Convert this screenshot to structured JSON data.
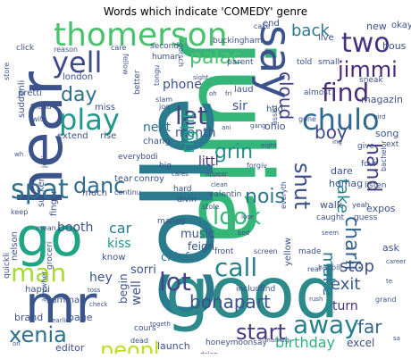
{
  "title": "Words which indicate 'COMEDY' genre",
  "words": [
    {
      "text": "ted",
      "color": "#2a8c8a"
    },
    {
      "text": "julia",
      "color": "#34b679"
    },
    {
      "text": "colle",
      "color": "#2a7b8e"
    },
    {
      "text": "good",
      "color": "#2c8a8b"
    },
    {
      "text": "hear",
      "color": "#3b528b"
    },
    {
      "text": "go",
      "color": "#20a486"
    },
    {
      "text": "mr",
      "color": "#39568c"
    },
    {
      "text": "thomerson",
      "color": "#4ac16d"
    },
    {
      "text": "say",
      "color": "#3b528b"
    },
    {
      "text": "find",
      "color": "#472d7b"
    },
    {
      "text": "chulo",
      "color": "#31688e"
    },
    {
      "text": "play",
      "color": "#1f988b"
    },
    {
      "text": "let",
      "color": "#414487"
    },
    {
      "text": "two",
      "color": "#46327e"
    },
    {
      "text": "jimmi",
      "color": "#482878"
    },
    {
      "text": "yell",
      "color": "#3e4a89"
    },
    {
      "text": "palac",
      "color": "#4ac16d"
    },
    {
      "text": "spat",
      "color": "#2c728e"
    },
    {
      "text": "man",
      "color": "#a5db36"
    },
    {
      "text": "away",
      "color": "#277f8e"
    },
    {
      "text": "look",
      "color": "#3aba76"
    },
    {
      "text": "call",
      "color": "#25838e"
    },
    {
      "text": "lot",
      "color": "#404688"
    },
    {
      "text": "bonapart",
      "color": "#3b528b"
    },
    {
      "text": "xenia",
      "color": "#2d708e"
    },
    {
      "text": "peopl",
      "color": "#bddf26"
    },
    {
      "text": "start",
      "color": "#443983"
    },
    {
      "text": "danc",
      "color": "#2f6c8e"
    },
    {
      "text": "shut",
      "color": "#3b528b"
    },
    {
      "text": "nois",
      "color": "#2a768e"
    },
    {
      "text": "grin",
      "color": "#21918c"
    },
    {
      "text": "hand",
      "color": "#433e85"
    },
    {
      "text": "charli",
      "color": "#33638d"
    },
    {
      "text": "day",
      "color": "#2d708e"
    },
    {
      "text": "far",
      "color": "#31688e"
    },
    {
      "text": "boy",
      "color": "#3e4989"
    },
    {
      "text": "cloud",
      "color": "#414487"
    },
    {
      "text": "back",
      "color": "#2a788e"
    },
    {
      "text": "make",
      "color": "#2a778e"
    },
    {
      "text": "take",
      "color": "#25838e"
    },
    {
      "text": "exit",
      "color": "#375a8c"
    },
    {
      "text": "stop",
      "color": "#3d4d8a"
    },
    {
      "text": "birthday",
      "color": "#2db27d"
    },
    {
      "text": "turn",
      "color": "#472f7d"
    },
    {
      "text": "excel",
      "color": "#3b528b"
    },
    {
      "text": "month",
      "color": "#3b528b"
    },
    {
      "text": "littl",
      "color": "#472d7b"
    },
    {
      "text": "right",
      "color": "#1fa088"
    },
    {
      "text": "phone",
      "color": "#3b528b"
    },
    {
      "text": "sir",
      "color": "#3b528b"
    },
    {
      "text": "next",
      "color": "#2c728e"
    },
    {
      "text": "car",
      "color": "#287d8e"
    },
    {
      "text": "kiss",
      "color": "#1f978b"
    },
    {
      "text": "booth",
      "color": "#3b528b"
    },
    {
      "text": "hey",
      "color": "#3b528b"
    },
    {
      "text": "sorri",
      "color": "#3b528b"
    },
    {
      "text": "chief",
      "color": "#2a768e"
    },
    {
      "text": "music",
      "color": "#3b528b"
    },
    {
      "text": "feign",
      "color": "#3b528b"
    },
    {
      "text": "well",
      "color": "#3b528b"
    },
    {
      "text": "begin",
      "color": "#3b528b"
    },
    {
      "text": "yellow",
      "color": "#3b528b"
    },
    {
      "text": "walk",
      "color": "#3b528b"
    },
    {
      "text": "ask",
      "color": "#3b528b"
    },
    {
      "text": "expos",
      "color": "#3b528b"
    },
    {
      "text": "homag",
      "color": "#3b528b"
    },
    {
      "text": "dare",
      "color": "#3b528b"
    },
    {
      "text": "song",
      "color": "#3b528b"
    },
    {
      "text": "ohio",
      "color": "#3b528b"
    },
    {
      "text": "hug",
      "color": "#3b528b"
    },
    {
      "text": "laud",
      "color": "#3b528b"
    },
    {
      "text": "chang",
      "color": "#3b528b"
    },
    {
      "text": "tear",
      "color": "#3b528b"
    },
    {
      "text": "conroy",
      "color": "#3b528b"
    },
    {
      "text": "extend",
      "color": "#3b528b"
    },
    {
      "text": "rise",
      "color": "#3b528b"
    },
    {
      "text": "suddenli",
      "color": "#3b528b"
    },
    {
      "text": "pretti",
      "color": "#3b528b"
    },
    {
      "text": "london",
      "color": "#3b528b"
    },
    {
      "text": "editor",
      "color": "#3b528b"
    },
    {
      "text": "launch",
      "color": "#3b528b"
    },
    {
      "text": "cours",
      "color": "#3b528b"
    },
    {
      "text": "page",
      "color": "#3b528b"
    },
    {
      "text": "brand",
      "color": "#3b528b"
    },
    {
      "text": "summa",
      "color": "#3b528b"
    },
    {
      "text": "happi",
      "color": "#3b528b"
    },
    {
      "text": "nelson",
      "color": "#3b528b"
    },
    {
      "text": "finger",
      "color": "#3b528b"
    },
    {
      "text": "sucker",
      "color": "#3b528b"
    },
    {
      "text": "know",
      "color": "#3b528b"
    },
    {
      "text": "much",
      "color": "#3b528b"
    },
    {
      "text": "everybodi",
      "color": "#3b528b"
    },
    {
      "text": "big",
      "color": "#3b528b"
    },
    {
      "text": "hous",
      "color": "#3b528b"
    },
    {
      "text": "new",
      "color": "#3b528b"
    },
    {
      "text": "okay",
      "color": "#3b528b"
    },
    {
      "text": "magazin",
      "color": "#3b528b"
    },
    {
      "text": "live",
      "color": "#3b528b"
    },
    {
      "text": "small",
      "color": "#3b528b"
    },
    {
      "text": "told",
      "color": "#3b528b"
    },
    {
      "text": "end",
      "color": "#3b528b"
    },
    {
      "text": "second",
      "color": "#3b528b"
    },
    {
      "text": "human",
      "color": "#3b528b"
    },
    {
      "text": "buckingham",
      "color": "#3b528b"
    },
    {
      "text": "parent",
      "color": "#3b528b"
    },
    {
      "text": "better",
      "color": "#3b528b"
    },
    {
      "text": "miss",
      "color": "#3b528b"
    },
    {
      "text": "sneak",
      "color": "#3b528b"
    },
    {
      "text": "almost",
      "color": "#3b528b"
    },
    {
      "text": "give",
      "color": "#3b528b"
    },
    {
      "text": "ext",
      "color": "#3b528b"
    },
    {
      "text": "four",
      "color": "#3b528b"
    },
    {
      "text": "listen",
      "color": "#3b528b"
    },
    {
      "text": "valentin",
      "color": "#3b528b"
    },
    {
      "text": "caught",
      "color": "#3b528b"
    },
    {
      "text": "guess",
      "color": "#3b528b"
    },
    {
      "text": "made",
      "color": "#3b528b"
    },
    {
      "text": "includfind",
      "color": "#3b528b"
    },
    {
      "text": "front",
      "color": "#3b528b"
    },
    {
      "text": "screen",
      "color": "#3b528b"
    },
    {
      "text": "real",
      "color": "#3b528b"
    },
    {
      "text": "manag",
      "color": "#3b528b"
    },
    {
      "text": "hard",
      "color": "#3b528b"
    },
    {
      "text": "divin",
      "color": "#3b528b"
    },
    {
      "text": "honeymoonsay",
      "color": "#3b528b"
    },
    {
      "text": "dead",
      "color": "#3b528b"
    },
    {
      "text": "quickli",
      "color": "#3b528b"
    },
    {
      "text": "groceri",
      "color": "#3b528b"
    },
    {
      "text": "anywher",
      "color": "#3b528b"
    },
    {
      "text": "continu",
      "color": "#3b528b"
    },
    {
      "text": "keep",
      "color": "#3b528b"
    },
    {
      "text": "mean",
      "color": "#3b528b"
    },
    {
      "text": "click",
      "color": "#3b528b"
    },
    {
      "text": "store",
      "color": "#3b528b"
    },
    {
      "text": "gone",
      "color": "#3b528b"
    },
    {
      "text": "reason",
      "color": "#3b528b"
    },
    {
      "text": "care",
      "color": "#3b528b"
    },
    {
      "text": "cake",
      "color": "#3b528b"
    },
    {
      "text": "wit",
      "color": "#3b528b"
    },
    {
      "text": "friend",
      "color": "#3b528b"
    },
    {
      "text": "slam",
      "color": "#3b528b"
    },
    {
      "text": "joe",
      "color": "#3b528b"
    },
    {
      "text": "jolli",
      "color": "#3b528b"
    },
    {
      "text": "bachelor",
      "color": "#3b528b"
    },
    {
      "text": "stole",
      "color": "#3b528b"
    },
    {
      "text": "everyth",
      "color": "#3b528b"
    },
    {
      "text": "happili",
      "color": "#3b528b"
    },
    {
      "text": "assist",
      "color": "#3b528b"
    },
    {
      "text": "forgiv",
      "color": "#3b528b"
    },
    {
      "text": "tongu",
      "color": "#3b528b"
    },
    {
      "text": "gorsch",
      "color": "#3b528b"
    },
    {
      "text": "yeah",
      "color": "#3b528b"
    },
    {
      "text": "fellow",
      "color": "#3b528b"
    },
    {
      "text": "grand",
      "color": "#3b528b"
    },
    {
      "text": "marriag",
      "color": "#3b528b"
    },
    {
      "text": "deleg",
      "color": "#3b528b"
    },
    {
      "text": "bird",
      "color": "#3b528b"
    },
    {
      "text": "gang",
      "color": "#3b528b"
    },
    {
      "text": "ani",
      "color": "#3b528b"
    },
    {
      "text": "earlier",
      "color": "#3b528b"
    },
    {
      "text": "check",
      "color": "#3b528b"
    },
    {
      "text": "togeth",
      "color": "#3b528b"
    },
    {
      "text": "appear",
      "color": "#3b528b"
    },
    {
      "text": "clean",
      "color": "#3b528b"
    },
    {
      "text": "eight",
      "color": "#3b528b"
    },
    {
      "text": "career",
      "color": "#3b528b"
    },
    {
      "text": "cares",
      "color": "#3b528b"
    },
    {
      "text": "bed",
      "color": "#3b528b"
    },
    {
      "text": "lose",
      "color": "#3b528b"
    },
    {
      "text": "seem",
      "color": "#3b528b"
    },
    {
      "text": "toss",
      "color": "#3b528b"
    },
    {
      "text": "sight",
      "color": "#3b528b"
    },
    {
      "text": "rush",
      "color": "#3b528b"
    },
    {
      "text": "oh",
      "color": "#3b528b"
    },
    {
      "text": "fri",
      "color": "#3b528b"
    },
    {
      "text": "ing",
      "color": "#3b528b"
    },
    {
      "text": "wh",
      "color": "#3b528b"
    },
    {
      "text": "sa",
      "color": "#3b528b"
    },
    {
      "text": "te",
      "color": "#3b528b"
    },
    {
      "text": "on",
      "color": "#3b528b"
    }
  ]
}
